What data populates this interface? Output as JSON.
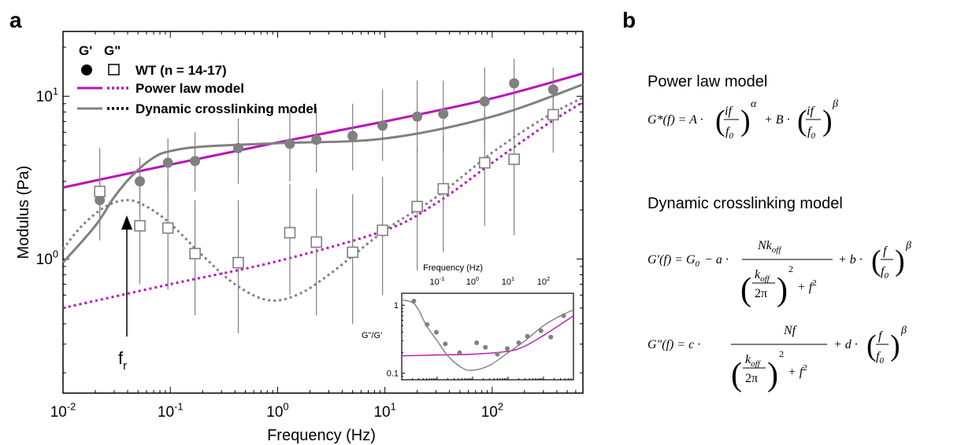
{
  "panels": {
    "a": "a",
    "b": "b"
  },
  "legend": {
    "col_gp": "G'",
    "col_gpp": "G\"",
    "wt": "WT (n = 14-17)",
    "power": "Power law model",
    "dynamic": "Dynamic crosslinking model"
  },
  "annotation": {
    "fr_main": "f",
    "fr_sub": "r"
  },
  "colors": {
    "magenta": "#bb11bb",
    "gray": "#808080",
    "dark": "#000000"
  },
  "chart_data": [
    {
      "type": "scatter",
      "xlabel": "Frequency (Hz)",
      "ylabel": "Modulus (Pa)",
      "xscale": "log",
      "yscale": "log",
      "xlim": [
        0.01,
        700
      ],
      "ylim": [
        0.15,
        25
      ],
      "x_ticks": [
        0.01,
        0.1,
        1,
        10,
        100
      ],
      "y_ticks": [
        1,
        10
      ],
      "x_tick_labels": [
        [
          "10",
          "-2"
        ],
        [
          "10",
          "-1"
        ],
        [
          "10",
          "0"
        ],
        [
          "10",
          "1"
        ],
        [
          "10",
          "2"
        ]
      ],
      "y_tick_labels": [
        [
          "10",
          "0"
        ],
        [
          "10",
          "1"
        ]
      ],
      "legend_position": "top-left",
      "series": [
        {
          "name": "G'",
          "style": "filled-circle",
          "color": "#808080",
          "x": [
            0.022,
            0.052,
            0.095,
            0.17,
            0.43,
            1.3,
            2.3,
            5.0,
            9.5,
            20,
            35,
            85,
            160,
            370
          ],
          "y": [
            2.3,
            3.0,
            3.9,
            4.0,
            4.8,
            5.1,
            5.4,
            5.7,
            6.6,
            7.5,
            7.8,
            9.3,
            12.0,
            11.0
          ],
          "err_lo": [
            1.6,
            2.0,
            2.7,
            2.6,
            2.9,
            3.0,
            3.4,
            3.5,
            4.0,
            4.5,
            4.5,
            5.2,
            5.7,
            7.0
          ],
          "err_hi": [
            3.2,
            4.2,
            5.5,
            6.0,
            7.3,
            8.2,
            8.5,
            9.0,
            11.0,
            12.5,
            12.5,
            15.0,
            17.0,
            15.0
          ]
        },
        {
          "name": "G\"",
          "style": "open-square",
          "color": "#808080",
          "x": [
            0.022,
            0.052,
            0.095,
            0.17,
            0.43,
            1.3,
            2.3,
            5.0,
            9.5,
            20,
            35,
            85,
            160,
            370
          ],
          "y": [
            2.6,
            1.6,
            1.55,
            1.08,
            0.95,
            1.45,
            1.27,
            1.1,
            1.5,
            2.1,
            2.7,
            3.9,
            4.1,
            7.7
          ],
          "err_lo": [
            1.3,
            0.7,
            0.65,
            0.45,
            0.35,
            0.6,
            0.45,
            0.4,
            0.6,
            0.85,
            1.1,
            1.6,
            1.4,
            4.5
          ],
          "err_hi": [
            4.8,
            3.0,
            3.1,
            2.3,
            2.3,
            2.9,
            2.7,
            2.5,
            3.2,
            4.8,
            5.7,
            7.8,
            8.2,
            11.0
          ]
        },
        {
          "name": "Power law model G'",
          "style": "solid-line",
          "color": "#bb11bb",
          "x": [
            0.01,
            0.1,
            1,
            10,
            100,
            700
          ],
          "y": [
            2.75,
            3.8,
            5.2,
            7.0,
            9.7,
            13.8
          ]
        },
        {
          "name": "Power law model G\"",
          "style": "dotted-line",
          "color": "#bb11bb",
          "x": [
            0.01,
            0.1,
            1,
            10,
            30,
            100,
            300,
            700
          ],
          "y": [
            0.5,
            0.7,
            0.97,
            1.5,
            2.2,
            3.9,
            6.5,
            9.2
          ]
        },
        {
          "name": "Dynamic crosslinking model G'",
          "style": "solid-line",
          "color": "#808080",
          "x": [
            0.01,
            0.02,
            0.03,
            0.045,
            0.07,
            0.1,
            0.2,
            1,
            10,
            100,
            700
          ],
          "y": [
            0.95,
            1.6,
            2.4,
            3.3,
            4.2,
            4.6,
            4.9,
            5.15,
            5.5,
            7.5,
            11.8
          ]
        },
        {
          "name": "Dynamic crosslinking model G\"",
          "style": "dotted-line",
          "color": "#808080",
          "x": [
            0.01,
            0.015,
            0.025,
            0.04,
            0.06,
            0.1,
            0.2,
            0.4,
            0.8,
            1.5,
            3,
            10,
            30,
            100,
            300,
            700
          ],
          "y": [
            1.15,
            1.6,
            2.1,
            2.3,
            2.1,
            1.65,
            1.05,
            0.7,
            0.56,
            0.6,
            0.8,
            1.5,
            2.4,
            4.5,
            7.3,
            9.8
          ]
        }
      ]
    },
    {
      "type": "scatter",
      "xlabel": "Frequency (Hz)",
      "ylabel": "G\"/G'",
      "xscale": "log",
      "yscale": "log",
      "xlim": [
        0.01,
        700
      ],
      "ylim": [
        0.08,
        1.5
      ],
      "x_ticks": [
        0.1,
        1,
        10,
        100
      ],
      "y_ticks": [
        0.1,
        1
      ],
      "x_tick_labels": [
        [
          "10",
          "-1"
        ],
        [
          "10",
          "0"
        ],
        [
          "10",
          "1"
        ],
        [
          "10",
          "2"
        ]
      ],
      "y_tick_labels": [
        [
          "0.1",
          ""
        ],
        [
          "1",
          ""
        ]
      ],
      "series": [
        {
          "name": "G\"/G'",
          "style": "filled-circle",
          "color": "#808080",
          "x": [
            0.022,
            0.052,
            0.095,
            0.17,
            0.43,
            1.3,
            2.3,
            5.0,
            9.5,
            20,
            35,
            85,
            160,
            370
          ],
          "y": [
            1.15,
            0.52,
            0.4,
            0.27,
            0.2,
            0.28,
            0.24,
            0.19,
            0.23,
            0.28,
            0.35,
            0.42,
            0.34,
            0.7
          ]
        },
        {
          "name": "power",
          "style": "solid-line",
          "color": "#bb11bb",
          "x": [
            0.01,
            0.1,
            1,
            10,
            30,
            100,
            300,
            700
          ],
          "y": [
            0.18,
            0.185,
            0.19,
            0.21,
            0.25,
            0.36,
            0.52,
            0.7
          ]
        },
        {
          "name": "dynamic",
          "style": "solid-line",
          "color": "#808080",
          "x": [
            0.01,
            0.02,
            0.03,
            0.05,
            0.1,
            0.2,
            0.5,
            1,
            3,
            10,
            30,
            100,
            300,
            700
          ],
          "y": [
            1.2,
            1.1,
            0.85,
            0.5,
            0.3,
            0.18,
            0.12,
            0.11,
            0.13,
            0.2,
            0.3,
            0.5,
            0.7,
            0.85
          ]
        }
      ]
    }
  ],
  "equations": {
    "power_title": "Power law model",
    "dynamic_title": "Dynamic crosslinking model",
    "power_lhs": "G*(f) = A ·",
    "power_frac_num": "if",
    "power_frac_den": "f",
    "power_den_sub": "0",
    "power_exp_a": "α",
    "power_plus_b": "+ B ·",
    "power_exp_b": "β",
    "gp_lhs": "G′(f) = G",
    "gp_g0_sub": "0",
    "gp_minus_a": "− a ·",
    "gp_num": "Nk",
    "gp_num_sub": "off",
    "den_k": "k",
    "den_k_sub": "off",
    "den_2pi": "2π",
    "den_sq": "2",
    "den_plus_f2": "+ f",
    "gp_plus_b": "+ b ·",
    "frac_f": "f",
    "frac_f0": "f",
    "frac_f0_sub": "0",
    "exp_beta": "β",
    "gpp_lhs": "G″(f) = c ·",
    "gpp_num": "Nf",
    "gpp_plus_d": "+ d ·"
  }
}
